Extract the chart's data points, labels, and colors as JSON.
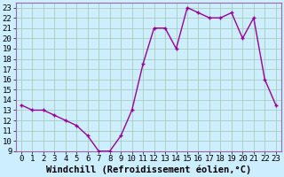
{
  "x": [
    0,
    1,
    2,
    3,
    4,
    5,
    6,
    7,
    8,
    9,
    10,
    11,
    12,
    13,
    14,
    15,
    16,
    17,
    18,
    19,
    20,
    21,
    22,
    23
  ],
  "y": [
    13.5,
    13.0,
    13.0,
    12.5,
    12.0,
    11.5,
    10.5,
    9.0,
    9.0,
    10.5,
    13.0,
    17.5,
    21.0,
    21.0,
    19.0,
    23.0,
    22.5,
    22.0,
    22.0,
    22.5,
    20.0,
    22.0,
    16.0,
    13.5
  ],
  "line_color": "#990099",
  "bg_color": "#cceeff",
  "grid_color": "#aaccbb",
  "xlabel": "Windchill (Refroidissement éolien,°C)",
  "xlim": [
    -0.5,
    23.5
  ],
  "ylim": [
    9,
    23.5
  ],
  "yticks": [
    9,
    10,
    11,
    12,
    13,
    14,
    15,
    16,
    17,
    18,
    19,
    20,
    21,
    22,
    23
  ],
  "xticks": [
    0,
    1,
    2,
    3,
    4,
    5,
    6,
    7,
    8,
    9,
    10,
    11,
    12,
    13,
    14,
    15,
    16,
    17,
    18,
    19,
    20,
    21,
    22,
    23
  ],
  "tick_label_fontsize": 6.5,
  "xlabel_fontsize": 7.5,
  "border_color": "#9966aa",
  "spine_color": "#9966aa"
}
